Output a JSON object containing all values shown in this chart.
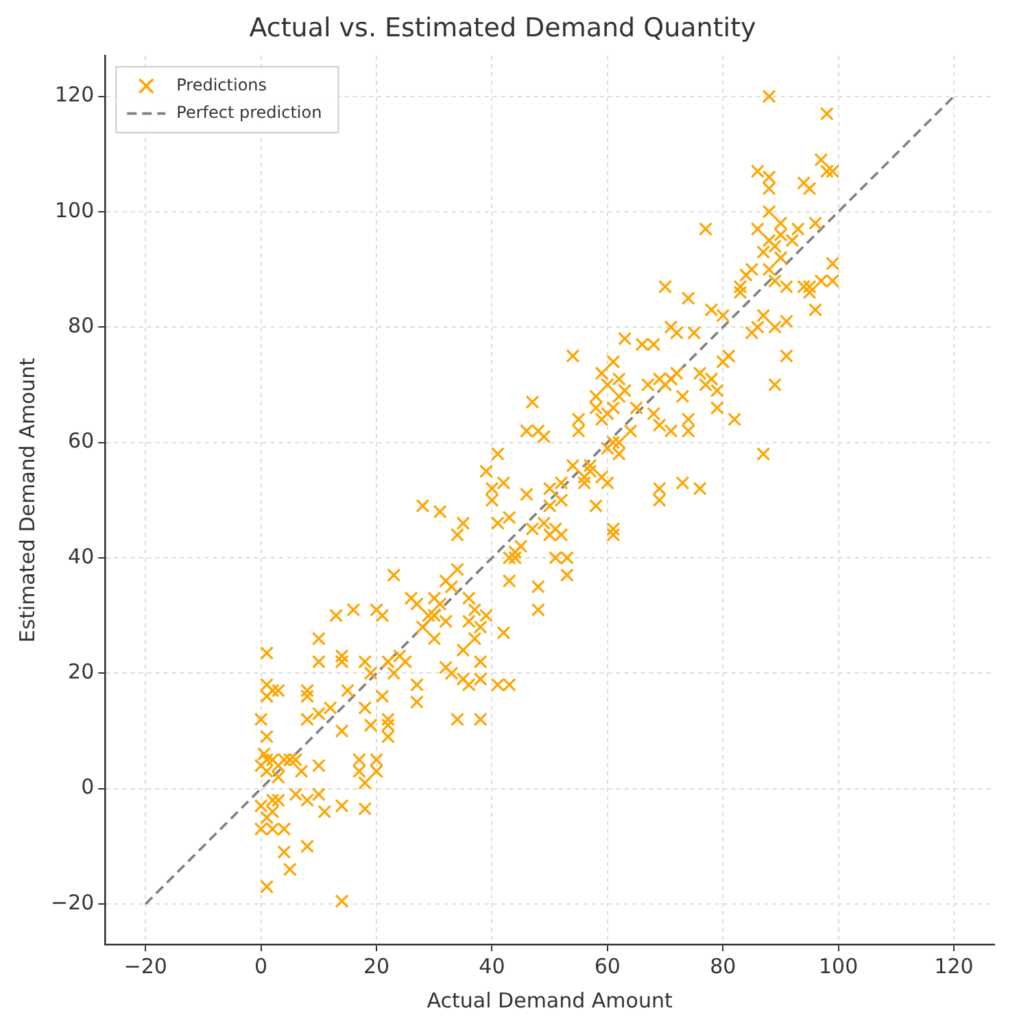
{
  "chart_data": {
    "type": "scatter",
    "title": "Actual vs. Estimated Demand Quantity",
    "xlabel": "Actual Demand Amount",
    "ylabel": "Estimated Demand Amount",
    "xlim": [
      -27,
      127
    ],
    "ylim": [
      -27,
      127
    ],
    "xticks": [
      {
        "value": -20,
        "label": "−20"
      },
      0,
      20,
      40,
      60,
      80,
      100,
      120
    ],
    "yticks": [
      {
        "value": -20,
        "label": "−20"
      },
      0,
      20,
      40,
      60,
      80,
      100,
      120
    ],
    "grid": true,
    "legend": "top left",
    "series": [
      {
        "name": "Predictions",
        "type": "scatter",
        "color": "#ffa500",
        "marker": "cross",
        "x": [
          0,
          0.5,
          0,
          1,
          1,
          1,
          1,
          2,
          3,
          2,
          3,
          1,
          0,
          1,
          2,
          2,
          3,
          0,
          1,
          4,
          4,
          5,
          6,
          7,
          8,
          8,
          5,
          6,
          4,
          1,
          2,
          3,
          8,
          8,
          8,
          10,
          10,
          10,
          10,
          10,
          11,
          12,
          13,
          14,
          14,
          14,
          15,
          14,
          14,
          16,
          17,
          17,
          18,
          18,
          18,
          19,
          18,
          19,
          20,
          20,
          20,
          21,
          21,
          22,
          22,
          22,
          22,
          23,
          23,
          24,
          25,
          26,
          27,
          27,
          27,
          28,
          28,
          29,
          30,
          30,
          30,
          31,
          31,
          32,
          32,
          32,
          33,
          33,
          34,
          34,
          34,
          35,
          35,
          35,
          36,
          36,
          36,
          37,
          37,
          38,
          38,
          38,
          38,
          39,
          39,
          40,
          40,
          41,
          41,
          41,
          42,
          42,
          43,
          43,
          43,
          43,
          44,
          44,
          45,
          46,
          46,
          47,
          47,
          48,
          48,
          48,
          49,
          49,
          50,
          50,
          50,
          51,
          51,
          52,
          52,
          52,
          53,
          53,
          54,
          54,
          55,
          55,
          56,
          56,
          57,
          57,
          58,
          58,
          58,
          59,
          59,
          59,
          60,
          60,
          60,
          60,
          61,
          61,
          61,
          61,
          61,
          62,
          62,
          62,
          62,
          63,
          63,
          64,
          65,
          66,
          67,
          68,
          68,
          69,
          69,
          69,
          69,
          70,
          70,
          71,
          71,
          71,
          72,
          72,
          73,
          73,
          74,
          74,
          74,
          75,
          76,
          76,
          77,
          77,
          78,
          78,
          79,
          79,
          80,
          80,
          81,
          82,
          83,
          83,
          84,
          85,
          85,
          86,
          86,
          86,
          87,
          87,
          87,
          88,
          88,
          88,
          88,
          88,
          88,
          89,
          89,
          89,
          89,
          90,
          90,
          90,
          91,
          91,
          91,
          92,
          93,
          94,
          94,
          95,
          95,
          95,
          96,
          96,
          97,
          97,
          98,
          98,
          99,
          99,
          99
        ],
        "values": [
          12,
          6,
          4,
          5,
          23.5,
          18,
          16,
          17,
          17,
          5,
          4,
          3,
          -3,
          -5,
          -4,
          -7,
          -2,
          -7,
          -17,
          -7,
          -11,
          -14,
          -1,
          3,
          -2,
          -10,
          5,
          5,
          5,
          9,
          -2,
          2,
          12,
          17,
          16,
          26,
          22,
          13,
          4,
          -1,
          -4,
          14,
          30,
          23,
          22,
          10,
          17,
          -3,
          -19.5,
          31,
          5,
          3,
          -3.5,
          1,
          14,
          20,
          22,
          11,
          3,
          5,
          31,
          30,
          16,
          12,
          9,
          11,
          22,
          37,
          20,
          23,
          22,
          33,
          15,
          18,
          32,
          49,
          28,
          30,
          30,
          33,
          26,
          48,
          32,
          36,
          29,
          21,
          20,
          35,
          38,
          44,
          12,
          24,
          19,
          46,
          18,
          33,
          29,
          26,
          31,
          12,
          22,
          28,
          19,
          30,
          55,
          52,
          50,
          46,
          58,
          18,
          53,
          27,
          18,
          40,
          36,
          47,
          41,
          40,
          42,
          51,
          62,
          67,
          45,
          35,
          62,
          31,
          46,
          61,
          49,
          44,
          52,
          45,
          40,
          53,
          44,
          50,
          40,
          37,
          75,
          56,
          64,
          62,
          53,
          54,
          56,
          55,
          68,
          66,
          49,
          64,
          54,
          72,
          65,
          70,
          59,
          53,
          74,
          66,
          60,
          44,
          45,
          68,
          58,
          71,
          60,
          78,
          69,
          62,
          66,
          77,
          70,
          65,
          77,
          71,
          63,
          50,
          52,
          87,
          70,
          80,
          71,
          62,
          79,
          72,
          68,
          53,
          85,
          64,
          62,
          79,
          52,
          72,
          97,
          70,
          71,
          83,
          66,
          69,
          82,
          74,
          75,
          64,
          86,
          87,
          89,
          79,
          90,
          80,
          97,
          107,
          93,
          58,
          82,
          120,
          106,
          104,
          90,
          95,
          100,
          80,
          70,
          94,
          88,
          98,
          92,
          96,
          75,
          87,
          81,
          95,
          97,
          105,
          87,
          104,
          86,
          87,
          83,
          98,
          109,
          88,
          117,
          107,
          107,
          91,
          88
        ]
      },
      {
        "name": "Perfect prediction",
        "type": "line",
        "color": "#808080",
        "line_style": "dashed",
        "marker": "none",
        "x": [
          -20,
          120
        ],
        "values": [
          -20,
          120
        ]
      }
    ]
  }
}
